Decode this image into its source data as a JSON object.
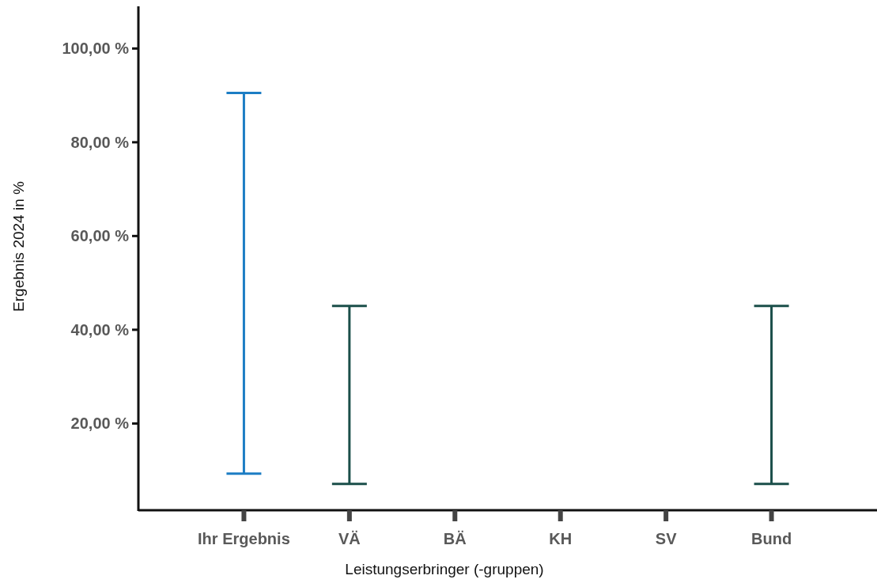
{
  "chart_data": {
    "type": "bar",
    "xlabel": "Leistungserbringer (-gruppen)",
    "ylabel": "Ergebnis 2024 in %",
    "categories": [
      "Ihr Ergebnis",
      "VÄ",
      "BÄ",
      "KH",
      "SV",
      "Bund"
    ],
    "base": [
      9.3,
      7.1,
      null,
      null,
      null,
      7.1
    ],
    "values": [
      81.2,
      38,
      null,
      null,
      null,
      38
    ],
    "colors": [
      "#1c7dc4",
      "#1b4f4a",
      null,
      null,
      null,
      "#1b4f4a"
    ],
    "ylim": [
      1.5,
      109
    ],
    "yticks": [
      {
        "value": 20,
        "label": "20,00 %"
      },
      {
        "value": 40,
        "label": "40,00 %"
      },
      {
        "value": 60,
        "label": "60,00 %"
      },
      {
        "value": 80,
        "label": "80,00 %"
      },
      {
        "value": 100,
        "label": "100,00 %"
      }
    ],
    "grid": false
  }
}
